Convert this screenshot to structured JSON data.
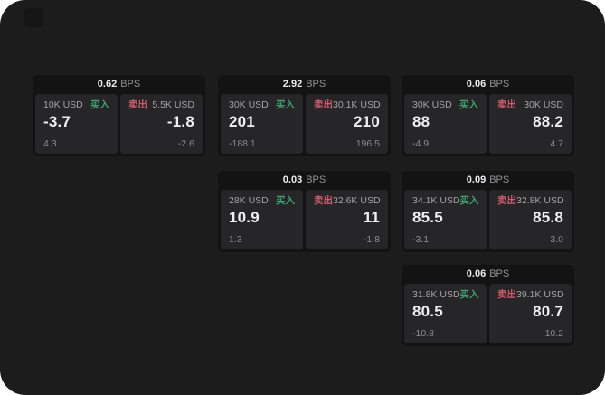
{
  "labels": {
    "bps": "BPS",
    "buy": "买入",
    "sell": "卖出"
  },
  "colors": {
    "page_bg": "#1c1c1d",
    "card_bg": "#131314",
    "panel_bg": "#262628",
    "buy_green": "#3fa06d",
    "sell_red": "#d25a6c",
    "value_white": "#f0f0f1",
    "muted_gray": "#8b8b8e",
    "amount_gray": "#a3a3a6"
  },
  "cards": [
    {
      "bps": "0.62",
      "buy": {
        "amount": "10K USD",
        "value": "-3.7",
        "delta": "4.3"
      },
      "sell": {
        "amount": "5.5K USD",
        "value": "-1.8",
        "delta": "-2.6"
      }
    },
    {
      "bps": "2.92",
      "buy": {
        "amount": "30K USD",
        "value": "201",
        "delta": "-188.1"
      },
      "sell": {
        "amount": "30.1K USD",
        "value": "210",
        "delta": "196.5"
      }
    },
    {
      "bps": "0.06",
      "buy": {
        "amount": "30K USD",
        "value": "88",
        "delta": "-4.9"
      },
      "sell": {
        "amount": "30K USD",
        "value": "88.2",
        "delta": "4.7"
      }
    },
    {
      "bps": "0.03",
      "buy": {
        "amount": "28K USD",
        "value": "10.9",
        "delta": "1.3"
      },
      "sell": {
        "amount": "32.6K USD",
        "value": "11",
        "delta": "-1.8"
      }
    },
    {
      "bps": "0.09",
      "buy": {
        "amount": "34.1K USD",
        "value": "85.5",
        "delta": "-3.1"
      },
      "sell": {
        "amount": "32.8K USD",
        "value": "85.8",
        "delta": "3.0"
      }
    },
    {
      "bps": "0.06",
      "buy": {
        "amount": "31.8K USD",
        "value": "80.5",
        "delta": "-10.8"
      },
      "sell": {
        "amount": "39.1K USD",
        "value": "80.7",
        "delta": "10.2"
      }
    }
  ]
}
